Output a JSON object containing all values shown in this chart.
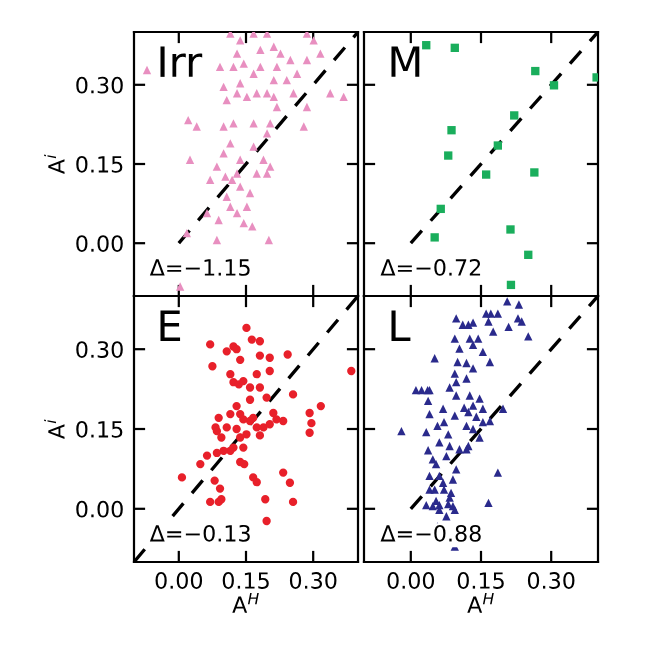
{
  "chart_data": [
    {
      "type": "scatter",
      "ylabel": "A$^{i}$",
      "annotations": [
        "Irr",
        "Δ=−1.15"
      ],
      "xlim": [
        -0.1,
        0.4
      ],
      "ylim": [
        -0.1,
        0.4
      ],
      "xticks": [
        0,
        0.15,
        0.3
      ],
      "yticks": [
        {
          "value": 0,
          "label": "0.00"
        },
        {
          "value": 0.15,
          "label": "0.15"
        },
        {
          "value": 0.3,
          "label": "0.30"
        }
      ],
      "tick_labels": "y",
      "series": [
        {
          "color": "#e88fc0",
          "marker": "triangle",
          "x": [
            -0.071,
            0.003,
            0.021,
            0.025,
            0.04,
            0.063,
            0.018,
            0.085,
            0.089,
            0.07,
            0.085,
            0.1,
            0.115,
            0.122,
            0.1,
            0.104,
            0.119,
            0.13,
            0.137,
            0.115,
            0.13,
            0.145,
            0.164,
            0.201,
            0.152,
            0.159,
            0.174,
            0.189,
            0.204,
            0.197,
            0.167,
            0.204,
            0.219,
            0.212,
            0.197,
            0.174,
            0.152,
            0.13,
            0.107,
            0.1,
            0.137,
            0.167,
            0.182,
            0.145,
            0.13,
            0.137,
            0.167,
            0.197,
            0.212,
            0.227,
            0.219,
            0.249,
            0.241,
            0.256,
            0.264,
            0.286,
            0.301,
            0.316,
            0.338,
            0.368,
            0.286,
            0.279,
            0.197,
            0.137,
            0.107,
            0.167,
            0.212,
            0.182,
            0.122,
            0.092,
            0.115,
            0.286
          ],
          "values": [
            0.328,
            -0.082,
            0.233,
            0.158,
            0.221,
            0.057,
            0.019,
            0.006,
            0.044,
            0.12,
            0.145,
            0.17,
            0.189,
            0.227,
            0.221,
            0.126,
            0.12,
            0.132,
            0.107,
            0.069,
            0.057,
            0.038,
            0.032,
            0.006,
            0.069,
            0.095,
            0.132,
            0.158,
            0.145,
            0.208,
            0.227,
            0.227,
            0.258,
            0.277,
            0.284,
            0.284,
            0.277,
            0.284,
            0.271,
            0.296,
            0.303,
            0.321,
            0.334,
            0.34,
            0.359,
            0.384,
            0.397,
            0.397,
            0.372,
            0.359,
            0.334,
            0.347,
            0.309,
            0.284,
            0.321,
            0.347,
            0.384,
            0.359,
            0.284,
            0.277,
            0.258,
            0.221,
            0.132,
            0.158,
            0.088,
            0.183,
            0.309,
            0.366,
            0.334,
            0.334,
            0.397,
            0.397
          ]
        },
        {
          "type": "line",
          "color": "#000000",
          "line_style": "dashed",
          "x": [
            0,
            0.4
          ],
          "values": [
            0,
            0.4
          ]
        }
      ]
    },
    {
      "type": "scatter",
      "annotations": [
        "M",
        "Δ=−0.72"
      ],
      "xlim": [
        -0.1,
        0.4
      ],
      "ylim": [
        -0.1,
        0.4
      ],
      "xticks": [
        0,
        0.15,
        0.3
      ],
      "yticks": [
        0,
        0.15,
        0.3
      ],
      "tick_labels": false,
      "series": [
        {
          "color": "#1aae5c",
          "marker": "square",
          "x": [
            0.033,
            0.094,
            0.266,
            0.306,
            0.397,
            0.221,
            0.087,
            0.186,
            0.08,
            0.161,
            0.264,
            0.064,
            0.051,
            0.213,
            0.251,
            0.214
          ],
          "values": [
            0.375,
            0.37,
            0.326,
            0.299,
            0.314,
            0.242,
            0.214,
            0.185,
            0.166,
            0.13,
            0.134,
            0.065,
            0.011,
            0.026,
            -0.022,
            -0.079
          ]
        },
        {
          "type": "line",
          "color": "#000000",
          "line_style": "dashed",
          "x": [
            0,
            0.4
          ],
          "values": [
            0,
            0.4
          ]
        }
      ]
    },
    {
      "type": "scatter",
      "xlabel": "A$^{H}$",
      "ylabel": "A$^{i}$",
      "annotations": [
        "E",
        "Δ=−0.13"
      ],
      "xlim": [
        -0.1,
        0.4
      ],
      "ylim": [
        -0.1,
        0.4
      ],
      "xticks": [
        {
          "value": 0,
          "label": "0.00"
        },
        {
          "value": 0.15,
          "label": "0.15"
        },
        {
          "value": 0.3,
          "label": "0.30"
        }
      ],
      "yticks": [
        {
          "value": 0,
          "label": "0.00"
        },
        {
          "value": 0.15,
          "label": "0.15"
        },
        {
          "value": 0.3,
          "label": "0.30"
        }
      ],
      "series": [
        {
          "color": "#e8202a",
          "marker": "circle",
          "x": [
            0.007,
            0.048,
            0.063,
            0.07,
            0.075,
            0.08,
            0.07,
            0.089,
            0.095,
            0.092,
            0.085,
            0.085,
            0.082,
            0.089,
            0.095,
            0.107,
            0.115,
            0.122,
            0.129,
            0.137,
            0.122,
            0.134,
            0.144,
            0.151,
            0.163,
            0.181,
            0.181,
            0.203,
            0.203,
            0.174,
            0.159,
            0.181,
            0.196,
            0.159,
            0.129,
            0.115,
            0.137,
            0.107,
            0.129,
            0.144,
            0.159,
            0.166,
            0.174,
            0.189,
            0.203,
            0.181,
            0.151,
            0.137,
            0.122,
            0.115,
            0.137,
            0.144,
            0.166,
            0.174,
            0.193,
            0.211,
            0.218,
            0.233,
            0.243,
            0.255,
            0.233,
            0.248,
            0.255,
            0.292,
            0.296,
            0.292,
            0.317,
            0.385,
            0.1,
            0.146,
            0.196
          ],
          "values": [
            0.059,
            0.084,
            0.1,
            0.309,
            0.268,
            0.053,
            0.013,
            0.013,
            0.018,
            0.038,
            0.105,
            0.146,
            0.153,
            0.171,
            0.134,
            0.296,
            0.253,
            0.305,
            0.3,
            0.28,
            0.238,
            0.234,
            0.24,
            0.34,
            0.318,
            0.288,
            0.315,
            0.284,
            0.259,
            0.253,
            0.228,
            0.228,
            0.209,
            0.205,
            0.193,
            0.178,
            0.178,
            0.153,
            0.15,
            0.168,
            0.165,
            0.171,
            0.153,
            0.153,
            0.159,
            0.138,
            0.14,
            0.134,
            0.115,
            0.109,
            0.088,
            0.115,
            0.059,
            0.05,
            0.018,
            0.18,
            0.168,
            0.165,
            0.29,
            0.215,
            0.068,
            0.049,
            0.013,
            0.18,
            0.161,
            0.143,
            0.193,
            0.259,
            0.109,
            0.084,
            -0.023
          ]
        },
        {
          "type": "line",
          "color": "#000000",
          "line_style": "dashed",
          "x": [
            -0.1,
            0.4
          ],
          "values": [
            -0.1,
            0.4
          ]
        }
      ]
    },
    {
      "type": "scatter",
      "xlabel": "A$^{H}$",
      "annotations": [
        "L",
        "Δ=−0.88"
      ],
      "xlim": [
        -0.1,
        0.4
      ],
      "ylim": [
        -0.1,
        0.4
      ],
      "xticks": [
        {
          "value": 0,
          "label": "0.00"
        },
        {
          "value": 0.15,
          "label": "0.15"
        },
        {
          "value": 0.3,
          "label": "0.30"
        }
      ],
      "yticks": [
        0,
        0.15,
        0.3
      ],
      "tick_labels": "x",
      "series": [
        {
          "color": "#2a2a8c",
          "marker": "triangle",
          "x": [
            -0.02,
            0.051,
            0.011,
            0.023,
            0.036,
            0.04,
            0.037,
            0.04,
            0.033,
            0.037,
            0.047,
            0.054,
            0.04,
            0.061,
            0.069,
            0.04,
            0.051,
            0.071,
            0.033,
            0.047,
            0.061,
            0.08,
            0.09,
            0.061,
            0.094,
            0.083,
            0.076,
            0.057,
            0.069,
            0.071,
            0.08,
            0.083,
            0.076,
            0.094,
            0.097,
            0.083,
            0.097,
            0.094,
            0.1,
            0.094,
            0.104,
            0.097,
            0.111,
            0.123,
            0.133,
            0.126,
            0.133,
            0.144,
            0.166,
            0.161,
            0.171,
            0.186,
            0.206,
            0.231,
            0.209,
            0.229,
            0.237,
            0.251,
            0.176,
            0.154,
            0.169,
            0.119,
            0.133,
            0.119,
            0.126,
            0.114,
            0.123,
            0.133,
            0.147,
            0.154,
            0.14,
            0.119,
            0.133,
            0.154,
            0.169,
            0.197,
            0.123,
            0.147,
            0.119,
            0.186,
            0.166,
            0.097,
            0.104,
            0.061,
            0.057,
            0.09,
            0.054,
            0.086,
            0.094
          ],
          "values": [
            0.146,
            0.283,
            0.223,
            0.223,
            0.223,
            0.223,
            0.203,
            0.178,
            0.144,
            0.11,
            0.093,
            0.084,
            0.062,
            0.062,
            0.049,
            0.036,
            0.036,
            0.036,
            0.007,
            0.005,
            0.007,
            0.009,
            0.005,
            -0.002,
            -0.002,
            0.021,
            -0.014,
            -0.033,
            0.188,
            0.163,
            0.14,
            0.118,
            0.099,
            0.175,
            0.213,
            0.228,
            0.238,
            0.254,
            0.276,
            0.32,
            0.301,
            0.358,
            0.346,
            0.346,
            0.35,
            0.32,
            0.308,
            0.32,
            0.352,
            0.367,
            0.367,
            0.367,
            0.39,
            0.384,
            0.342,
            0.358,
            0.352,
            0.324,
            0.333,
            0.295,
            0.276,
            0.274,
            0.264,
            0.245,
            0.213,
            0.19,
            0.182,
            0.194,
            0.207,
            0.188,
            0.173,
            0.156,
            0.15,
            0.163,
            0.165,
            0.188,
            0.118,
            0.134,
            0.112,
            0.068,
            0.011,
            0.074,
            0.112,
            0.125,
            0.156,
            0.055,
            0.015,
            0.03,
            -0.071
          ]
        },
        {
          "type": "line",
          "color": "#000000",
          "line_style": "dashed",
          "x": [
            0,
            0.4
          ],
          "values": [
            0,
            0.4
          ]
        }
      ]
    }
  ]
}
